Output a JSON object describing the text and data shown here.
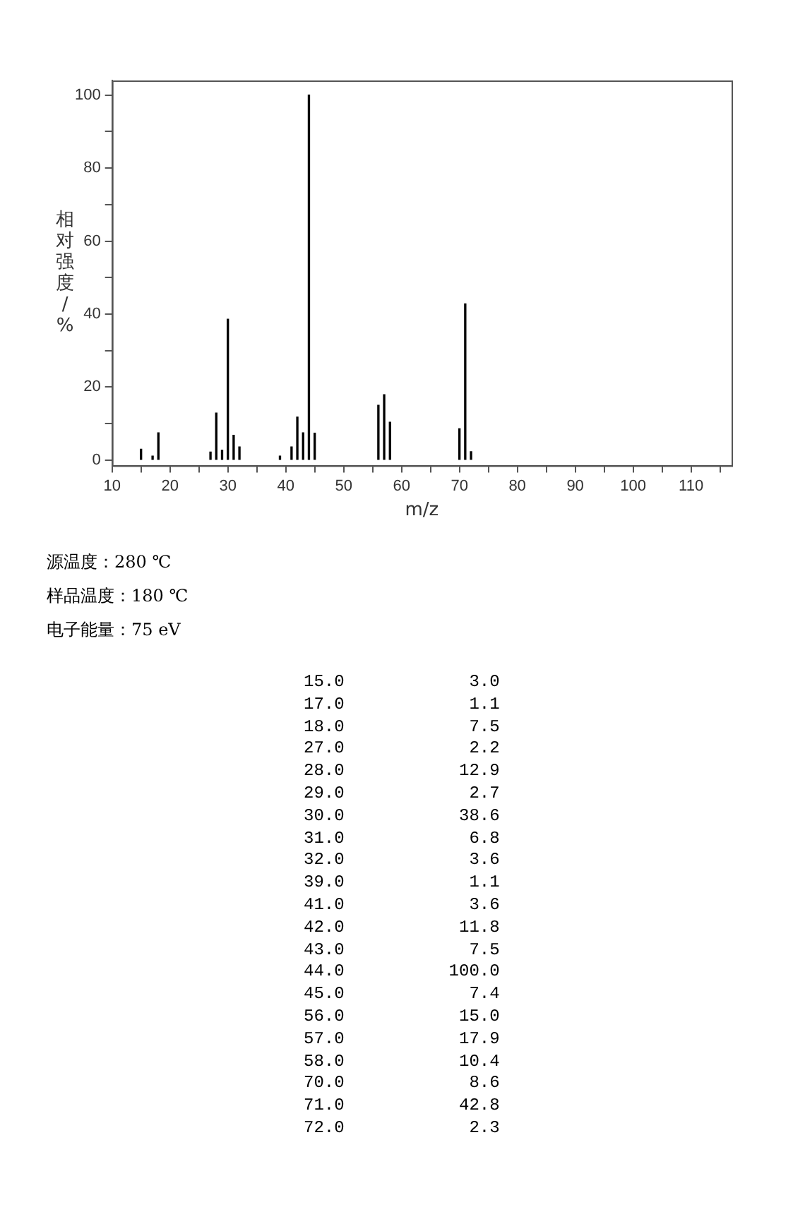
{
  "chart_data": [
    {
      "type": "bar",
      "xlabel": "m/z",
      "ylabel": "相对强度/%",
      "x": [
        15,
        17,
        18,
        27,
        28,
        29,
        30,
        31,
        32,
        39,
        41,
        42,
        43,
        44,
        45,
        56,
        57,
        58,
        70,
        71,
        72
      ],
      "values": [
        3.0,
        1.1,
        7.5,
        2.2,
        12.9,
        2.7,
        38.6,
        6.8,
        3.6,
        1.1,
        3.6,
        11.8,
        7.5,
        100.0,
        7.4,
        15.0,
        17.9,
        10.4,
        8.6,
        42.8,
        2.3
      ],
      "color": "#000000",
      "xlim": [
        10,
        117
      ],
      "xticks": [
        10,
        {
          "value": 15,
          "label": null
        },
        20,
        {
          "value": 25,
          "label": null
        },
        30,
        {
          "value": 35,
          "label": null
        },
        40,
        {
          "value": 45,
          "label": null
        },
        50,
        {
          "value": 55,
          "label": null
        },
        60,
        {
          "value": 65,
          "label": null
        },
        70,
        {
          "value": 75,
          "label": null
        },
        80,
        {
          "value": 85,
          "label": null
        },
        90,
        {
          "value": 95,
          "label": null
        },
        100,
        {
          "value": 105,
          "label": null
        },
        110,
        {
          "value": 115,
          "label": null
        }
      ],
      "ylim": [
        -1.5,
        104
      ],
      "yticks": [
        0,
        {
          "value": 10,
          "label": null
        },
        20,
        {
          "value": 30,
          "label": null
        },
        40,
        {
          "value": 50,
          "label": null
        },
        60,
        {
          "value": 70,
          "label": null
        },
        80,
        {
          "value": 90,
          "label": null
        },
        100
      ],
      "grid": false,
      "legend": false,
      "annotations": [
        "源温度：280 ℃",
        "样品温度：180 ℃",
        "电子能量：75 eV"
      ]
    },
    {
      "type": "other",
      "categories": [
        "15.0",
        "17.0",
        "18.0",
        "27.0",
        "28.0",
        "29.0",
        "30.0",
        "31.0",
        "32.0",
        "39.0",
        "41.0",
        "42.0",
        "43.0",
        "44.0",
        "45.0",
        "56.0",
        "57.0",
        "58.0",
        "70.0",
        "71.0",
        "72.0"
      ],
      "value_labels": [
        "3.0",
        "1.1",
        "7.5",
        "2.2",
        "12.9",
        "2.7",
        "38.6",
        "6.8",
        "3.6",
        "1.1",
        "3.6",
        "11.8",
        "7.5",
        "100.0",
        "7.4",
        "15.0",
        "17.9",
        "10.4",
        "8.6",
        "42.8",
        "2.3"
      ]
    }
  ]
}
